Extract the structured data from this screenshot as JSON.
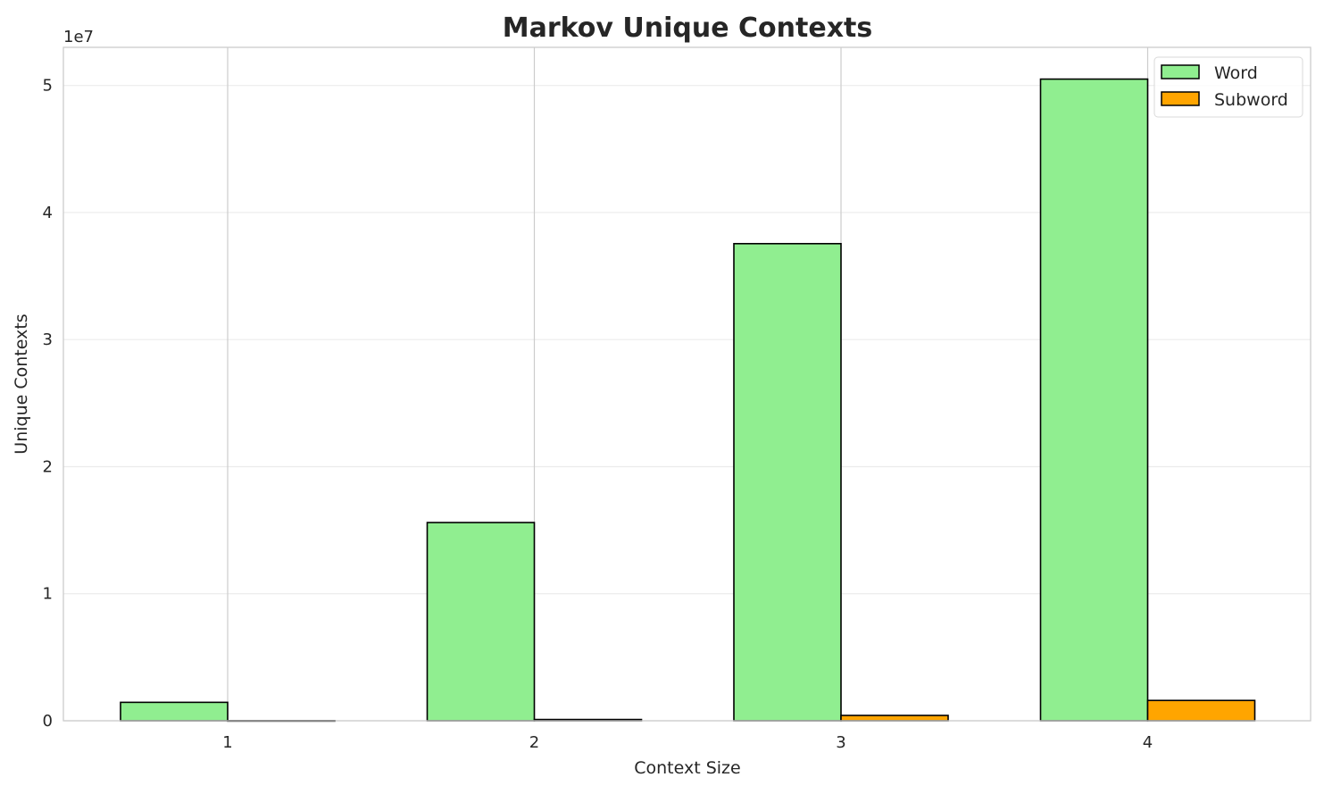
{
  "chart_data": {
    "type": "bar",
    "title": "Markov Unique Contexts",
    "xlabel": "Context Size",
    "ylabel": "Unique Contexts",
    "y_offset_label": "1e7",
    "categories": [
      "1",
      "2",
      "3",
      "4"
    ],
    "series": [
      {
        "name": "Word",
        "color": "#90EE90",
        "values": [
          1450000,
          15600000,
          37550000,
          50500000
        ]
      },
      {
        "name": "Subword",
        "color": "#FFA500",
        "values": [
          10000,
          100000,
          420000,
          1600000
        ]
      }
    ],
    "yticks": [
      0,
      1,
      2,
      3,
      4,
      5
    ],
    "ylim": [
      0,
      53000000
    ],
    "grid": true,
    "legend": "top-right"
  }
}
